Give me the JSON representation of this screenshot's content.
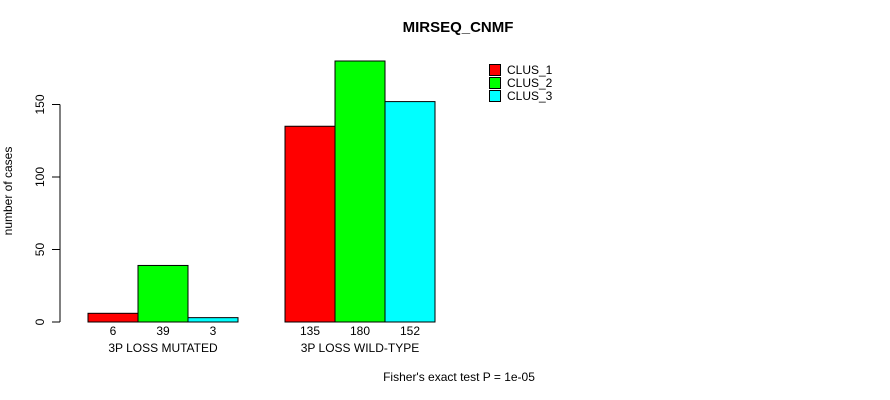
{
  "chart_data": {
    "type": "bar",
    "title": "MIRSEQ_CNMF",
    "ylabel": "number of cases",
    "xlabel": "",
    "categories": [
      "3P LOSS MUTATED",
      "3P LOSS WILD-TYPE"
    ],
    "series": [
      {
        "name": "CLUS_1",
        "color": "#ff0000",
        "values": [
          6,
          135
        ]
      },
      {
        "name": "CLUS_2",
        "color": "#00ff00",
        "values": [
          39,
          180
        ]
      },
      {
        "name": "CLUS_3",
        "color": "#00ffff",
        "values": [
          3,
          152
        ]
      }
    ],
    "yticks": [
      0,
      50,
      100,
      150
    ],
    "ylim": [
      0,
      180
    ],
    "grid": false,
    "bar_value_labels_shown": true,
    "legend_position": "top-right",
    "bar_border_color": "#000000",
    "annotation": "Fisher's exact test P = 1e-05"
  }
}
